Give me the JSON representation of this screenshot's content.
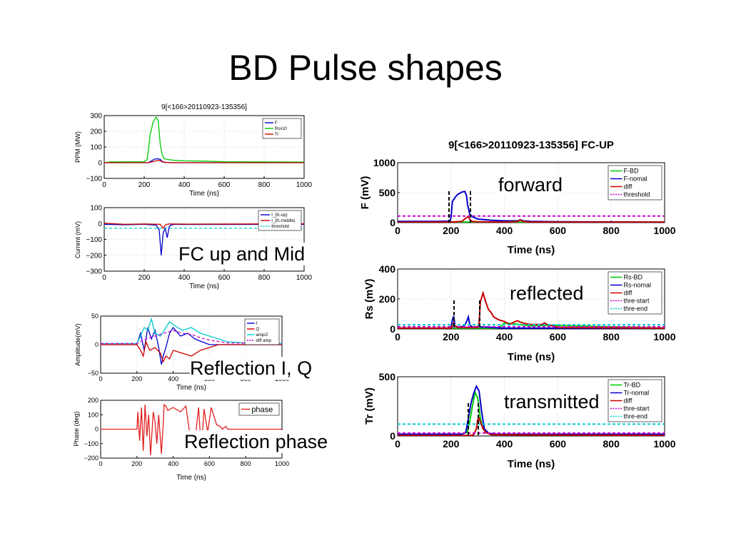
{
  "slide": {
    "title": "BD Pulse shapes",
    "labels": {
      "fc": "FC up and Mid",
      "iq": "Reflection I, Q",
      "phase": "Reflection phase",
      "forward": "forward",
      "reflected": "reflected",
      "transmitted": "transmitted"
    }
  },
  "chart_data": [
    {
      "id": "ppm",
      "type": "line",
      "title": "9[<166>20110923-135356]",
      "xlabel": "Time (ns)",
      "ylabel": "PPM (MW)",
      "xlim": [
        0,
        1000
      ],
      "ylim": [
        -100,
        300
      ],
      "xticks": [
        0,
        200,
        400,
        600,
        800,
        1000
      ],
      "yticks": [
        -100,
        0,
        100,
        200,
        300
      ],
      "grid": true,
      "legend_position": "top-right",
      "legend": [
        "F",
        "Rsx10",
        "Tr"
      ],
      "series": [
        {
          "name": "F",
          "color": "#0000cc",
          "x": [
            0,
            220,
            235,
            250,
            265,
            280,
            290,
            300,
            350,
            1000
          ],
          "y": [
            0,
            0,
            10,
            22,
            25,
            22,
            8,
            2,
            0,
            0
          ]
        },
        {
          "name": "Rsx10",
          "color": "#00cc00",
          "x": [
            0,
            30,
            200,
            215,
            230,
            245,
            260,
            270,
            280,
            290,
            300,
            320,
            350,
            400,
            500,
            600,
            800,
            1000
          ],
          "y": [
            0,
            5,
            6,
            20,
            180,
            260,
            290,
            270,
            120,
            50,
            25,
            20,
            15,
            12,
            10,
            6,
            5,
            4
          ]
        },
        {
          "name": "Tr",
          "color": "#cc0000",
          "x": [
            0,
            220,
            240,
            260,
            275,
            290,
            320,
            1000
          ],
          "y": [
            0,
            0,
            6,
            12,
            15,
            6,
            0,
            0
          ]
        }
      ]
    },
    {
      "id": "fc-current",
      "type": "line",
      "title": "",
      "xlabel": "Time (ns)",
      "ylabel": "Current (mV)",
      "xlim": [
        0,
        1000
      ],
      "ylim": [
        -300,
        100
      ],
      "xticks": [
        0,
        200,
        400,
        600,
        800,
        1000
      ],
      "yticks": [
        -300,
        -200,
        -100,
        0,
        100
      ],
      "grid": true,
      "legend_position": "top-right",
      "legend": [
        "I_{fc-up}",
        "I_{fc-middle}",
        "threshold"
      ],
      "series": [
        {
          "name": "I_{fc-up}",
          "color": "#0000cc",
          "x": [
            0,
            100,
            200,
            260,
            275,
            285,
            295,
            305,
            315,
            325,
            335,
            350,
            400,
            1000
          ],
          "y": [
            -5,
            -8,
            -5,
            -10,
            -40,
            -200,
            -60,
            -30,
            -90,
            -20,
            -10,
            -5,
            -6,
            -5
          ]
        },
        {
          "name": "I_{fc-middle}",
          "color": "#cc0000",
          "x": [
            0,
            100,
            200,
            280,
            295,
            305,
            320,
            400,
            1000
          ],
          "y": [
            2,
            -5,
            -3,
            -5,
            -30,
            -10,
            -3,
            -4,
            -2
          ]
        },
        {
          "name": "threshold",
          "color": "#00cccc",
          "dash": true,
          "x": [
            0,
            1000
          ],
          "y": [
            -30,
            -30
          ]
        }
      ]
    },
    {
      "id": "reflection-iq",
      "type": "line",
      "title": "",
      "xlabel": "Time (ns)",
      "ylabel": "Amplitude(mV)",
      "xlim": [
        0,
        1000
      ],
      "ylim": [
        -50,
        50
      ],
      "xticks": [
        0,
        200,
        400,
        600,
        800,
        1000
      ],
      "yticks": [
        -50,
        0,
        50
      ],
      "grid": true,
      "legend_position": "top-right",
      "legend": [
        "I",
        "Q",
        "amp/2",
        "diff amp"
      ],
      "series": [
        {
          "name": "I",
          "color": "#0000cc",
          "x": [
            0,
            200,
            220,
            240,
            260,
            280,
            300,
            320,
            335,
            345,
            360,
            380,
            400,
            440,
            480,
            520,
            560,
            600,
            700,
            800,
            1000
          ],
          "y": [
            0,
            0,
            20,
            -10,
            30,
            10,
            25,
            -5,
            -35,
            -20,
            -5,
            20,
            30,
            15,
            20,
            10,
            5,
            0,
            0,
            0,
            0
          ]
        },
        {
          "name": "Q",
          "color": "#cc0000",
          "x": [
            0,
            200,
            220,
            235,
            250,
            270,
            300,
            330,
            345,
            360,
            380,
            400,
            450,
            500,
            550,
            600,
            650,
            700,
            1000
          ],
          "y": [
            0,
            0,
            -10,
            -20,
            5,
            -10,
            -5,
            -15,
            -30,
            -20,
            -25,
            -10,
            -15,
            -20,
            -10,
            -5,
            0,
            0,
            0
          ]
        },
        {
          "name": "amp/2",
          "color": "#00cccc",
          "x": [
            0,
            200,
            220,
            240,
            260,
            280,
            300,
            330,
            360,
            380,
            400,
            450,
            500,
            550,
            600,
            700,
            800,
            1000
          ],
          "y": [
            2,
            2,
            15,
            30,
            25,
            45,
            20,
            15,
            30,
            40,
            35,
            25,
            30,
            20,
            15,
            5,
            3,
            2
          ]
        },
        {
          "name": "diff amp",
          "color": "#cc00cc",
          "dash": true,
          "x": [
            0,
            200,
            250,
            300,
            350,
            400,
            450,
            500,
            550,
            600,
            700,
            1000
          ],
          "y": [
            2,
            2,
            10,
            15,
            20,
            25,
            20,
            18,
            12,
            8,
            3,
            2
          ]
        }
      ]
    },
    {
      "id": "reflection-phase",
      "type": "line",
      "title": "",
      "xlabel": "Time (ns)",
      "ylabel": "Phase (deg)",
      "xlim": [
        0,
        1000
      ],
      "ylim": [
        -200,
        200
      ],
      "xticks": [
        0,
        200,
        400,
        600,
        800,
        1000
      ],
      "yticks": [
        -200,
        -100,
        0,
        100,
        200
      ],
      "grid": false,
      "legend_position": "top-right",
      "legend": [
        "phase"
      ],
      "series": [
        {
          "name": "phase",
          "color": "#e02020",
          "x": [
            0,
            200,
            205,
            215,
            225,
            235,
            245,
            255,
            265,
            275,
            290,
            300,
            310,
            320,
            335,
            345,
            350,
            360,
            370,
            400,
            440,
            470,
            490,
            505,
            515,
            540,
            555,
            570,
            590,
            610,
            640,
            660,
            670,
            690,
            700,
            720,
            1000
          ],
          "y": [
            0,
            0,
            120,
            -80,
            150,
            -150,
            170,
            -50,
            100,
            -180,
            120,
            50,
            -100,
            100,
            -170,
            30,
            170,
            160,
            130,
            150,
            120,
            160,
            -20,
            -150,
            -140,
            150,
            -150,
            140,
            -20,
            150,
            30,
            20,
            0,
            20,
            0,
            0,
            0
          ]
        }
      ]
    },
    {
      "id": "fc-up-forward",
      "type": "line",
      "title": "9[<166>20110923-135356]  FC-UP",
      "xlabel": "Time (ns)",
      "ylabel": "F (mV)",
      "xlim": [
        0,
        1000
      ],
      "ylim": [
        0,
        1000
      ],
      "xticks": [
        0,
        200,
        400,
        600,
        800,
        1000
      ],
      "yticks": [
        0,
        500,
        1000
      ],
      "grid": true,
      "legend_position": "top-right",
      "legend": [
        "F-BD",
        "F-nomal",
        "diff",
        "threshold"
      ],
      "series": [
        {
          "name": "F-BD",
          "color": "#00cc00",
          "x": [
            0,
            1000
          ],
          "y": [
            10,
            10
          ]
        },
        {
          "name": "F-nomal",
          "color": "#0000cc",
          "x": [
            0,
            150,
            195,
            200,
            205,
            215,
            225,
            240,
            252,
            258,
            262,
            270,
            280,
            290,
            300,
            350,
            400,
            450,
            460,
            470,
            500,
            600,
            800,
            1000
          ],
          "y": [
            20,
            20,
            25,
            80,
            350,
            420,
            470,
            510,
            520,
            450,
            300,
            140,
            100,
            80,
            60,
            40,
            30,
            30,
            50,
            30,
            20,
            15,
            12,
            10
          ]
        },
        {
          "name": "diff",
          "color": "#cc0000",
          "x": [
            0,
            150,
            200,
            240,
            260,
            265,
            270,
            280,
            300,
            400,
            450,
            460,
            470,
            500,
            1000
          ],
          "y": [
            5,
            10,
            10,
            20,
            90,
            100,
            50,
            20,
            15,
            10,
            20,
            45,
            20,
            10,
            10
          ]
        },
        {
          "name": "threshold",
          "color": "#cc00cc",
          "dash": true,
          "x": [
            0,
            1000
          ],
          "y": [
            110,
            110
          ]
        }
      ]
    },
    {
      "id": "fc-up-reflected",
      "type": "line",
      "title": "",
      "xlabel": "Time (ns)",
      "ylabel": "Rs (mV)",
      "xlim": [
        0,
        1000
      ],
      "ylim": [
        0,
        400
      ],
      "xticks": [
        0,
        200,
        400,
        600,
        800,
        1000
      ],
      "yticks": [
        0,
        200,
        400
      ],
      "grid": true,
      "legend_position": "top-right",
      "legend": [
        "Rs-BD",
        "Rs-nomal",
        "diff",
        "thre-start",
        "thre-end"
      ],
      "series": [
        {
          "name": "Rs-BD",
          "color": "#00cc00",
          "x": [
            0,
            380,
            400,
            430,
            500,
            560,
            1000
          ],
          "y": [
            5,
            5,
            40,
            35,
            20,
            25,
            5
          ]
        },
        {
          "name": "Rs-nomal",
          "color": "#0000cc",
          "x": [
            0,
            200,
            205,
            210,
            215,
            230,
            250,
            260,
            265,
            270,
            280,
            300,
            350,
            400,
            500,
            1000
          ],
          "y": [
            5,
            5,
            60,
            85,
            20,
            10,
            20,
            55,
            80,
            30,
            10,
            15,
            10,
            5,
            5,
            5
          ]
        },
        {
          "name": "diff",
          "color": "#cc0000",
          "x": [
            0,
            200,
            210,
            215,
            225,
            300,
            305,
            310,
            320,
            330,
            340,
            350,
            360,
            380,
            400,
            420,
            440,
            450,
            460,
            480,
            500,
            540,
            550,
            560,
            600,
            1000
          ],
          "y": [
            5,
            5,
            40,
            20,
            10,
            10,
            40,
            180,
            240,
            180,
            130,
            110,
            80,
            60,
            50,
            30,
            50,
            55,
            45,
            35,
            30,
            30,
            40,
            30,
            10,
            5
          ]
        },
        {
          "name": "thre-start",
          "color": "#cc00cc",
          "dash": true,
          "x": [
            0,
            1000
          ],
          "y": [
            15,
            15
          ]
        },
        {
          "name": "thre-end",
          "color": "#00cccc",
          "dash": true,
          "x": [
            0,
            1000
          ],
          "y": [
            28,
            28
          ]
        }
      ]
    },
    {
      "id": "fc-up-transmitted",
      "type": "line",
      "title": "",
      "xlabel": "Time (ns)",
      "ylabel": "Tr (mV)",
      "xlim": [
        0,
        1000
      ],
      "ylim": [
        0,
        500
      ],
      "xticks": [
        0,
        200,
        400,
        600,
        800,
        1000
      ],
      "yticks": [
        0,
        500
      ],
      "grid": true,
      "legend_position": "top-right",
      "legend": [
        "Tr-BD",
        "Tr-nomal",
        "diff",
        "thre-start",
        "thre-end"
      ],
      "series": [
        {
          "name": "Tr-BD",
          "color": "#00cc00",
          "x": [
            0,
            240,
            260,
            270,
            280,
            290,
            300,
            310,
            320,
            330,
            350,
            1000
          ],
          "y": [
            15,
            15,
            30,
            120,
            250,
            370,
            320,
            150,
            60,
            30,
            15,
            15
          ]
        },
        {
          "name": "Tr-nomal",
          "color": "#0000cc",
          "x": [
            0,
            240,
            255,
            265,
            275,
            285,
            295,
            305,
            315,
            325,
            340,
            360,
            1000
          ],
          "y": [
            15,
            15,
            30,
            150,
            280,
            360,
            420,
            380,
            200,
            60,
            25,
            15,
            15
          ]
        },
        {
          "name": "diff",
          "color": "#cc0000",
          "x": [
            0,
            270,
            285,
            295,
            300,
            305,
            310,
            320,
            330,
            350,
            1000
          ],
          "y": [
            5,
            5,
            10,
            60,
            140,
            150,
            120,
            60,
            30,
            10,
            5
          ]
        },
        {
          "name": "thre-start",
          "color": "#cc00cc",
          "dash": true,
          "x": [
            0,
            1000
          ],
          "y": [
            25,
            25
          ]
        },
        {
          "name": "thre-end",
          "color": "#00cccc",
          "dash": true,
          "x": [
            0,
            1000
          ],
          "y": [
            100,
            100
          ]
        }
      ]
    }
  ]
}
